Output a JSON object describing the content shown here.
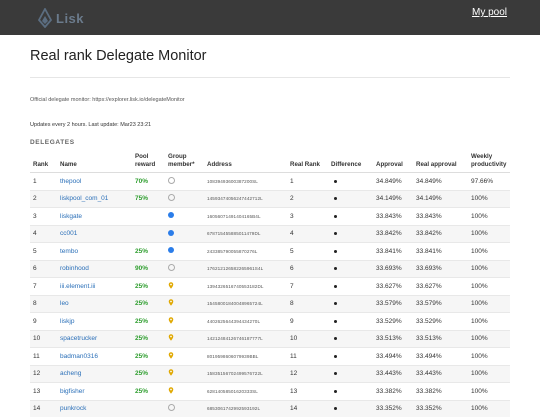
{
  "header": {
    "logo_text": "Lisk",
    "my_pool": "My pool"
  },
  "page": {
    "title": "Real rank Delegate Monitor",
    "official": "Official delegate monitor: https://explorer.lisk.io/delegateMonitor",
    "updates": "Updates every 2 hours. Last update: Mar23 23:21",
    "section": "DELEGATES"
  },
  "table": {
    "headers": {
      "rank": "Rank",
      "name": "Name",
      "pool": "Pool reward",
      "group": "Group member*",
      "address": "Address",
      "real_rank": "Real Rank",
      "difference": "Difference",
      "approval": "Approval",
      "real_approval": "Real approval",
      "weekly": "Weekly productivity"
    },
    "rows": [
      {
        "rank": "1",
        "name": "thepool",
        "reward": "70%",
        "member": "radio",
        "address": "10839493600387200SL",
        "real_rank": "1",
        "approval": "34.849%",
        "real_approval": "34.849%",
        "weekly": "97.66%"
      },
      {
        "rank": "2",
        "name": "liskpool_com_01",
        "reward": "75%",
        "member": "radio",
        "address": "14593474056247442712L",
        "real_rank": "2",
        "approval": "34.149%",
        "real_approval": "34.149%",
        "weekly": "100%"
      },
      {
        "rank": "3",
        "name": "liskgate",
        "reward": "",
        "member": "blue",
        "address": "16056071491404165B4L",
        "real_rank": "3",
        "approval": "33.843%",
        "real_approval": "33.843%",
        "weekly": "100%"
      },
      {
        "rank": "4",
        "name": "cc001",
        "reward": "",
        "member": "blue",
        "address": "678715455885011479DL",
        "real_rank": "4",
        "approval": "33.842%",
        "real_approval": "33.842%",
        "weekly": "100%"
      },
      {
        "rank": "5",
        "name": "tembo",
        "reward": "25%",
        "member": "blue",
        "address": "243385790055870276L",
        "real_rank": "5",
        "approval": "33.841%",
        "real_approval": "33.841%",
        "weekly": "100%"
      },
      {
        "rank": "6",
        "name": "robinhood",
        "reward": "90%",
        "member": "radio",
        "address": "176212126582265961S4L",
        "real_rank": "6",
        "approval": "33.693%",
        "real_approval": "33.693%",
        "weekly": "100%"
      },
      {
        "rank": "7",
        "name": "iii.element.iii",
        "reward": "25%",
        "member": "pin",
        "address": "1394326516740553182DL",
        "real_rank": "7",
        "approval": "33.627%",
        "real_approval": "33.627%",
        "weekly": "100%"
      },
      {
        "rank": "8",
        "name": "leo",
        "reward": "25%",
        "member": "pin",
        "address": "15458001840048965724L",
        "real_rank": "8",
        "approval": "33.579%",
        "real_approval": "33.579%",
        "weekly": "100%"
      },
      {
        "rank": "9",
        "name": "liskjp",
        "reward": "25%",
        "member": "pin",
        "address": "4402625644394434270L",
        "real_rank": "9",
        "approval": "33.529%",
        "real_approval": "33.529%",
        "weekly": "100%"
      },
      {
        "rank": "10",
        "name": "spacetrucker",
        "reward": "25%",
        "member": "pin",
        "address": "14212484126746187777L",
        "real_rank": "10",
        "approval": "33.513%",
        "real_approval": "33.513%",
        "weekly": "100%"
      },
      {
        "rank": "11",
        "name": "badman0316",
        "reward": "25%",
        "member": "pin",
        "address": "8019598606079939BBL",
        "real_rank": "11",
        "approval": "33.494%",
        "real_approval": "33.494%",
        "weekly": "100%"
      },
      {
        "rank": "12",
        "name": "acheng",
        "reward": "25%",
        "member": "pin",
        "address": "15835156702499576722L",
        "real_rank": "12",
        "approval": "33.443%",
        "real_approval": "33.443%",
        "weekly": "100%"
      },
      {
        "rank": "13",
        "name": "bigfisher",
        "reward": "25%",
        "member": "pin",
        "address": "62814058501620333SL",
        "real_rank": "13",
        "approval": "33.382%",
        "real_approval": "33.382%",
        "weekly": "100%"
      },
      {
        "rank": "14",
        "name": "punkrock",
        "reward": "",
        "member": "radio",
        "address": "6853061742992593192L",
        "real_rank": "14",
        "approval": "33.352%",
        "real_approval": "33.352%",
        "weekly": "100%"
      }
    ]
  },
  "colors": {
    "topbar": "#3a3a3a",
    "link": "#2a6fb8",
    "reward_green": "#2f9e2f",
    "member_blue": "#2b7de9",
    "pin_gold": "#e0a800"
  },
  "icons": {
    "logo": "lisk-logo-icon",
    "radio": "radio-empty-icon",
    "blue": "blue-dot-icon",
    "pin": "location-pin-icon",
    "difference": "black-dot-icon"
  }
}
